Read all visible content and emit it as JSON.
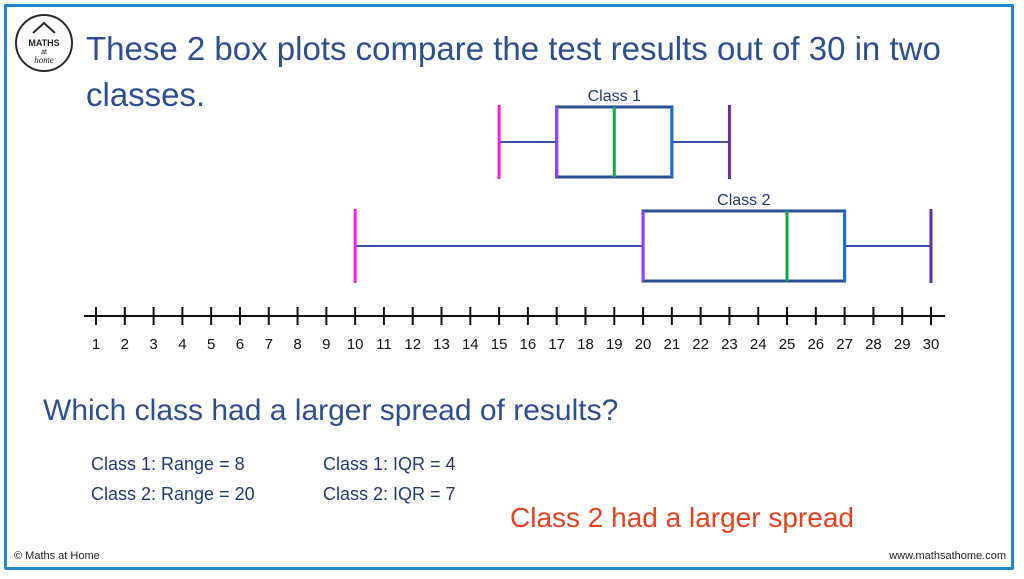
{
  "title": "These 2 box plots compare the test results out of 30 in two classes.",
  "logo": {
    "line1": "MATHS",
    "line2": "at",
    "line3": "home"
  },
  "chart_data": {
    "type": "boxplot",
    "axis": {
      "min": 1,
      "max": 30,
      "ticks": [
        1,
        2,
        3,
        4,
        5,
        6,
        7,
        8,
        9,
        10,
        11,
        12,
        13,
        14,
        15,
        16,
        17,
        18,
        19,
        20,
        21,
        22,
        23,
        24,
        25,
        26,
        27,
        28,
        29,
        30
      ]
    },
    "series": [
      {
        "name": "Class 1",
        "min": 15,
        "q1": 17,
        "median": 19,
        "q3": 21,
        "max": 23
      },
      {
        "name": "Class 2",
        "min": 10,
        "q1": 20,
        "median": 25,
        "q3": 27,
        "max": 30
      }
    ],
    "colors": {
      "min": "#ff1fd0",
      "q1": "#9a3cf2",
      "median": "#10a84b",
      "q3": "#1a6fe0",
      "max": "#6c2ba6",
      "whisker": "#3b55a6",
      "box": "#2b4f91",
      "axis": "#111111"
    }
  },
  "question": "Which class had a larger spread of results?",
  "stats": {
    "c1_range": "Class 1: Range = 8",
    "c2_range": "Class 2: Range = 20",
    "c1_iqr": "Class 1: IQR = 4",
    "c2_iqr": "Class 2: IQR = 7"
  },
  "answer": "Class 2 had a larger spread",
  "footer": {
    "left": "© Maths at Home",
    "right": "www.mathsathome.com"
  }
}
